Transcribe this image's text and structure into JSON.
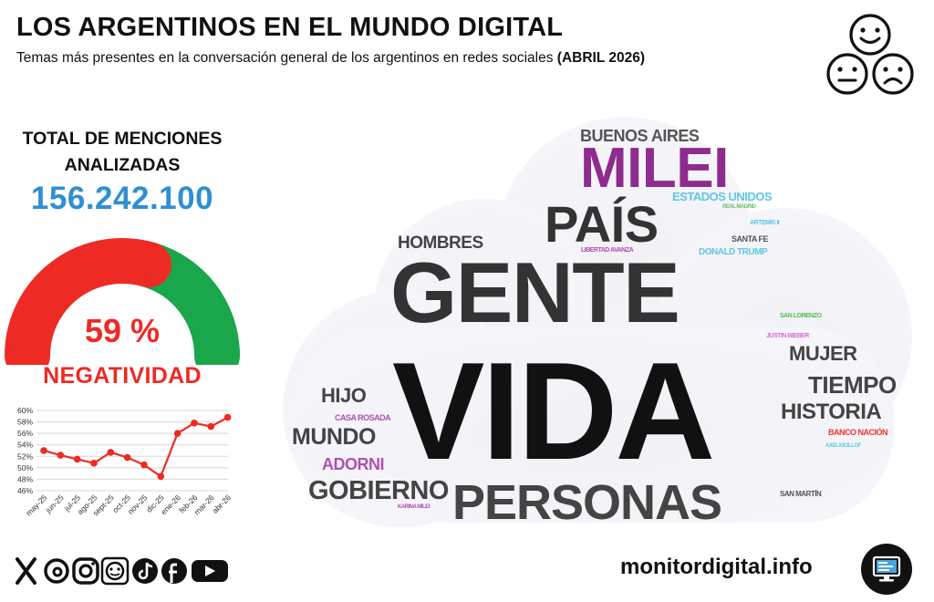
{
  "header": {
    "title": "LOS ARGENTINOS EN EL MUNDO DIGITAL",
    "subtitle": "Temas más presentes en la conversación general de los argentinos en redes sociales",
    "subtitle_bold": "(ABRIL 2026)"
  },
  "faces_icon": "happy-neutral-sad-faces-icon",
  "total": {
    "label_line1": "TOTAL DE MENCIONES",
    "label_line2": "ANALIZADAS",
    "value": "156.242.100"
  },
  "gauge": {
    "value_text": "59 %",
    "label": "NEGATIVIDAD",
    "negative_fraction": 0.59,
    "negative_color": "#ee2a24",
    "positive_color": "#1aa64b"
  },
  "chart_data": {
    "type": "line",
    "categories": [
      "may-25",
      "jun-25",
      "jul-25",
      "ago-25",
      "sept-25",
      "oct-25",
      "nov-25",
      "dic-25",
      "ene-26",
      "feb-26",
      "mar-26",
      "abr-26"
    ],
    "values": [
      53.0,
      52.2,
      51.5,
      50.8,
      52.7,
      51.8,
      50.5,
      48.5,
      56.0,
      57.8,
      57.2,
      58.8
    ],
    "ylim": [
      46,
      60
    ],
    "ytick_labels": [
      "60%",
      "58%",
      "56%",
      "54%",
      "52%",
      "50%",
      "48%",
      "46%"
    ],
    "ytick_values": [
      60,
      58,
      56,
      54,
      52,
      50,
      48,
      46
    ],
    "grid": true,
    "line_color": "#ee2a24"
  },
  "word_cloud": {
    "words": [
      {
        "text": "BUENOS AIRES",
        "color": "#555555"
      },
      {
        "text": "MILEI",
        "color": "#8e2c8e"
      },
      {
        "text": "ESTADOS UNIDOS",
        "color": "#5ec7e6"
      },
      {
        "text": "REAL MADRID",
        "color": "#6fbf6f"
      },
      {
        "text": "ARTEMIS II",
        "color": "#5ec7e6"
      },
      {
        "text": "PAÍS",
        "color": "#333333"
      },
      {
        "text": "SANTA FE",
        "color": "#555555"
      },
      {
        "text": "LIBERTAD AVANZA",
        "color": "#b04fb0"
      },
      {
        "text": "DONALD TRUMP",
        "color": "#5ec7e6"
      },
      {
        "text": "HOMBRES",
        "color": "#444444"
      },
      {
        "text": "GENTE",
        "color": "#333333"
      },
      {
        "text": "SAN LORENZO",
        "color": "#4cbf5a"
      },
      {
        "text": "JUSTIN BIEBER",
        "color": "#d86fd8"
      },
      {
        "text": "MUJER",
        "color": "#444444"
      },
      {
        "text": "TIEMPO",
        "color": "#444444"
      },
      {
        "text": "HIJO",
        "color": "#444444"
      },
      {
        "text": "VIDA",
        "color": "#111111"
      },
      {
        "text": "HISTORIA",
        "color": "#444444"
      },
      {
        "text": "CASA ROSADA",
        "color": "#b04fb0"
      },
      {
        "text": "BANCO NACIÓN",
        "color": "#ee3333"
      },
      {
        "text": "MUNDO",
        "color": "#444444"
      },
      {
        "text": "AXEL KICILLOF",
        "color": "#5ec7e6"
      },
      {
        "text": "ADORNI",
        "color": "#b04fb0"
      },
      {
        "text": "GOBIERNO",
        "color": "#444444"
      },
      {
        "text": "SAN MARTÍN",
        "color": "#555555"
      },
      {
        "text": "PERSONAS",
        "color": "#444444"
      },
      {
        "text": "KARINA MILEI",
        "color": "#b04fb0"
      }
    ]
  },
  "footer": {
    "social_icons": [
      "x-icon",
      "threads-icon",
      "instagram-icon",
      "telegram-icon",
      "tiktok-icon",
      "facebook-icon",
      "youtube-icon"
    ],
    "site": "monitordigital.info",
    "monitor_icon": "computer-monitor-icon"
  }
}
